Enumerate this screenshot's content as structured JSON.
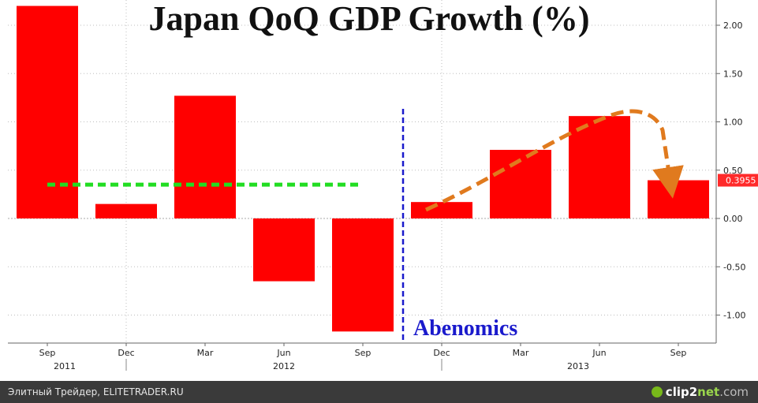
{
  "chart_data": {
    "type": "bar",
    "title": "Japan QoQ GDP Growth (%)",
    "categories": [
      "Sep",
      "Dec",
      "Mar",
      "Jun",
      "Sep",
      "Dec",
      "Mar",
      "Jun",
      "Sep"
    ],
    "year_labels": [
      "2011",
      "2012",
      "2013"
    ],
    "values": [
      2.2,
      0.15,
      1.27,
      -0.65,
      -1.17,
      0.17,
      0.71,
      1.06,
      0.3955
    ],
    "ylim": [
      -1.3,
      2.25
    ],
    "yticks": [
      2.0,
      1.5,
      1.0,
      0.5,
      0.0,
      -0.5,
      -1.0
    ],
    "ytick_labels": [
      "2.00",
      "1.50",
      "1.00",
      "0.50",
      "0.00",
      "-0.50",
      "-1.00"
    ],
    "average_line": {
      "value": 0.35,
      "color": "#22dd22"
    },
    "last_value_label": "0.3955",
    "annotation": "Abenomics",
    "bar_color": "#ff0000",
    "annotation_color": "#1a1acc",
    "trend_arrow_color": "#e07a1e",
    "grid": true
  },
  "footer": {
    "text": "Элитный Трейдер, ELITETRADER.RU",
    "logo_main": "clip2",
    "logo_sub": "net",
    "logo_tail": ".com"
  }
}
